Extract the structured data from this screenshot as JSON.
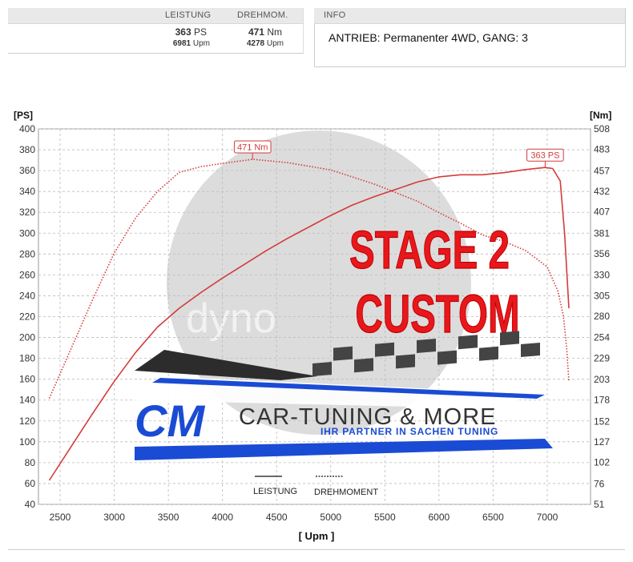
{
  "performance": {
    "headers": [
      "LEISTUNG",
      "DREHMOM."
    ],
    "power": {
      "value": "363",
      "unit": "PS",
      "rpm": "6981",
      "rpm_unit": "Upm"
    },
    "torque": {
      "value": "471",
      "unit": "Nm",
      "rpm": "4278",
      "rpm_unit": "Upm"
    }
  },
  "info": {
    "header": "INFO",
    "text": "ANTRIEB: Permanenter 4WD,  GANG: 3"
  },
  "overlay": {
    "stage_line1": "STAGE 2",
    "stage_line2": "CUSTOM",
    "brand_big": "CM",
    "brand_title": "CAR-TUNING & MORE",
    "brand_sub": "IHR PARTNER IN SACHEN TUNING",
    "watermark": "dyno"
  },
  "colors": {
    "curve": "#d43b3b",
    "stage_text": "#e8171b",
    "brand_blue": "#1a4bd4",
    "checker": "#444444"
  },
  "chart_data": {
    "type": "line",
    "xlabel": "[ Upm ]",
    "ylabel_left": "[PS]",
    "ylabel_right": "[Nm]",
    "xlim": [
      2300,
      7400
    ],
    "ylim_left": [
      40,
      400
    ],
    "ylim_right": [
      51,
      508
    ],
    "x_ticks": [
      2500,
      3000,
      3500,
      4000,
      4500,
      5000,
      5500,
      6000,
      6500,
      7000
    ],
    "y_ticks_left": [
      40,
      60,
      80,
      100,
      120,
      140,
      160,
      180,
      200,
      220,
      240,
      260,
      280,
      300,
      320,
      340,
      360,
      380,
      400
    ],
    "y_ticks_right": [
      51,
      76,
      102,
      127,
      152,
      178,
      203,
      229,
      254,
      280,
      305,
      330,
      356,
      381,
      407,
      432,
      457,
      483,
      508
    ],
    "grid": true,
    "legend": {
      "position": "bottom-center",
      "entries": [
        "LEISTUNG",
        "DREHMOMENT"
      ]
    },
    "series": [
      {
        "name": "LEISTUNG",
        "axis": "left",
        "style": "solid",
        "x": [
          2400,
          2600,
          2800,
          3000,
          3200,
          3400,
          3600,
          3800,
          4000,
          4200,
          4400,
          4600,
          4800,
          5000,
          5200,
          5400,
          5600,
          5800,
          6000,
          6200,
          6400,
          6600,
          6800,
          6981,
          7050,
          7120,
          7160,
          7200
        ],
        "y": [
          63,
          95,
          127,
          158,
          186,
          210,
          228,
          243,
          257,
          270,
          283,
          295,
          306,
          317,
          327,
          335,
          342,
          349,
          354,
          356,
          356,
          358,
          361,
          363,
          362,
          350,
          300,
          228
        ]
      },
      {
        "name": "DREHMOMENT",
        "axis": "right",
        "style": "dotted",
        "x": [
          2400,
          2600,
          2800,
          3000,
          3200,
          3400,
          3600,
          3800,
          4000,
          4278,
          4600,
          5000,
          5400,
          5800,
          6000,
          6200,
          6400,
          6600,
          6800,
          7000,
          7100,
          7150,
          7180,
          7200
        ],
        "y": [
          180,
          240,
          300,
          357,
          400,
          432,
          455,
          462,
          466,
          471,
          467,
          458,
          441,
          420,
          406,
          393,
          379,
          371,
          360,
          340,
          310,
          280,
          240,
          200
        ]
      }
    ],
    "annotations": [
      {
        "text": "471 Nm",
        "x": 4278,
        "y": 471,
        "axis": "right"
      },
      {
        "text": "363 PS",
        "x": 6981,
        "y": 363,
        "axis": "left"
      }
    ]
  }
}
